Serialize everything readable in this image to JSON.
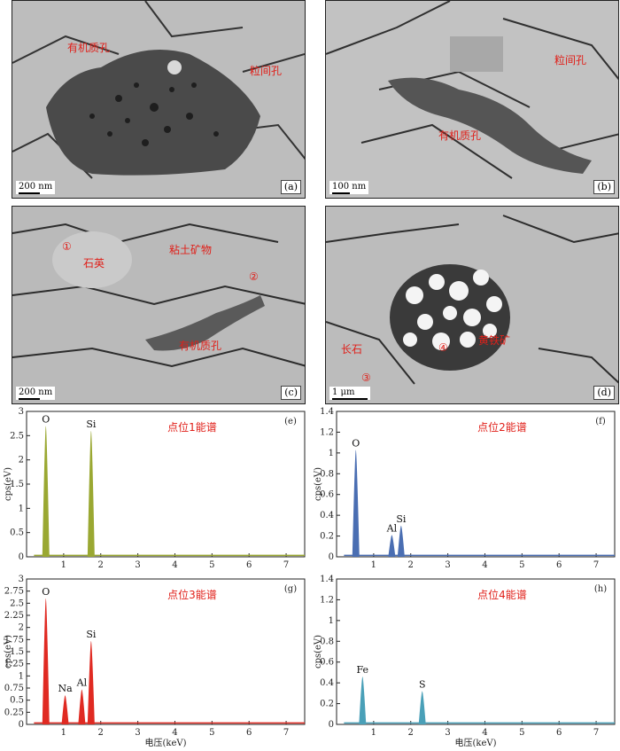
{
  "sem": {
    "a": {
      "tag": "(a)",
      "scale": "200 nm",
      "labels": {
        "org": "有机质孔",
        "inter": "粒间孔"
      }
    },
    "b": {
      "tag": "(b)",
      "scale": "100 nm",
      "labels": {
        "inter": "粒间孔",
        "org": "有机质孔"
      }
    },
    "c": {
      "tag": "(c)",
      "scale": "200 nm",
      "labels": {
        "p1": "①",
        "quartz": "石英",
        "clay": "粘土矿物",
        "p2": "②",
        "org": "有机质孔"
      }
    },
    "d": {
      "tag": "(d)",
      "scale": "1 μm",
      "labels": {
        "pyrite": "黄铁矿",
        "p4": "④",
        "feldspar": "长石",
        "p3": "③"
      }
    }
  },
  "chart_data": [
    {
      "type": "area",
      "panel": "(e)",
      "title": "点位1能谱",
      "ylabel": "cps(eV)",
      "xlabel": "",
      "xlim": [
        0,
        7.5
      ],
      "ylim": [
        0,
        3
      ],
      "y_ticks": [
        0,
        0.5,
        1,
        1.5,
        2,
        2.5,
        3
      ],
      "color": "#9aa832",
      "peaks": [
        {
          "el": "O",
          "x": 0.52,
          "y": 2.7
        },
        {
          "el": "Si",
          "x": 1.74,
          "y": 2.6
        }
      ]
    },
    {
      "type": "area",
      "panel": "(f)",
      "title": "点位2能谱",
      "ylabel": "cps(eV)",
      "xlabel": "",
      "xlim": [
        0,
        7.5
      ],
      "ylim": [
        0,
        1.4
      ],
      "y_ticks": [
        0,
        0.2,
        0.4,
        0.6,
        0.8,
        1.0,
        1.2,
        1.4
      ],
      "color": "#4a6eb2",
      "peaks": [
        {
          "el": "O",
          "x": 0.52,
          "y": 1.03
        },
        {
          "el": "Al",
          "x": 1.49,
          "y": 0.21
        },
        {
          "el": "Si",
          "x": 1.74,
          "y": 0.3
        }
      ]
    },
    {
      "type": "area",
      "panel": "(g)",
      "title": "点位3能谱",
      "ylabel": "cps(eV)",
      "xlabel": "电压(keV)",
      "xlim": [
        0,
        7.5
      ],
      "ylim": [
        0,
        3
      ],
      "y_ticks": [
        0,
        0.25,
        0.5,
        0.75,
        1,
        1.25,
        1.5,
        1.75,
        2,
        2.25,
        2.5,
        2.75,
        3
      ],
      "color": "#e02a22",
      "peaks": [
        {
          "el": "O",
          "x": 0.52,
          "y": 2.6
        },
        {
          "el": "Na",
          "x": 1.04,
          "y": 0.6
        },
        {
          "el": "Al",
          "x": 1.49,
          "y": 0.72
        },
        {
          "el": "Si",
          "x": 1.74,
          "y": 1.72
        }
      ]
    },
    {
      "type": "area",
      "panel": "(h)",
      "title": "点位4能谱",
      "ylabel": "cps(eV)",
      "xlabel": "电压(keV)",
      "xlim": [
        0,
        7.5
      ],
      "ylim": [
        0,
        1.4
      ],
      "y_ticks": [
        0,
        0.2,
        0.4,
        0.6,
        0.8,
        1.0,
        1.2,
        1.4
      ],
      "color": "#4aa0b8",
      "peaks": [
        {
          "el": "Fe",
          "x": 0.7,
          "y": 0.46
        },
        {
          "el": "S",
          "x": 2.31,
          "y": 0.32
        }
      ]
    }
  ]
}
